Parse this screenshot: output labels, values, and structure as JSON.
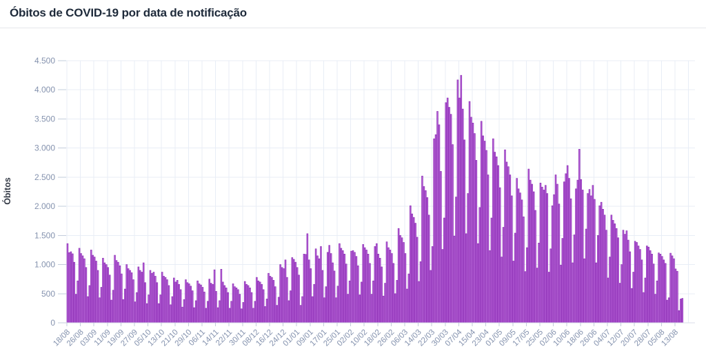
{
  "page": {
    "title": "Óbitos de COVID-19 por data de notificação"
  },
  "colors": {
    "title_text": "#1e2a3a",
    "axis_label_text": "#343a46",
    "tick_label_text": "#8492ae",
    "gridline": "#e8edf6",
    "axis_line": "#d8dee9",
    "tick_mark": "#c2ccdb",
    "bar_fill": "#b560d6",
    "bar_border": "#8a2cb3",
    "divider": "#e5e6ea",
    "background": "#ffffff"
  },
  "chart_data": {
    "type": "bar",
    "title": "Óbitos de COVID-19 por data de notificação",
    "xlabel": "",
    "ylabel": "Óbitos",
    "ylim": [
      0,
      4500
    ],
    "y_tick_step": 500,
    "y_ticks": [
      "0",
      "500",
      "1.000",
      "1.500",
      "2.000",
      "2.500",
      "3.000",
      "3.500",
      "4.000",
      "4.500"
    ],
    "grid": true,
    "legend_position": "none",
    "frequency": "daily",
    "start_date": "18/08/2020",
    "end_date": "17/08/2021",
    "x_tick_interval_days": 8,
    "x_tick_labels": [
      "18/08",
      "26/08",
      "03/09",
      "11/09",
      "19/09",
      "27/09",
      "05/10",
      "13/10",
      "21/10",
      "29/10",
      "06/11",
      "14/11",
      "22/11",
      "30/11",
      "08/12",
      "16/12",
      "24/12",
      "01/01",
      "09/01",
      "17/01",
      "25/01",
      "02/02",
      "10/02",
      "18/02",
      "26/02",
      "06/03",
      "14/03",
      "22/03",
      "30/03",
      "07/04",
      "15/04",
      "23/04",
      "01/05",
      "09/05",
      "17/05",
      "25/05",
      "02/06",
      "10/06",
      "18/06",
      "26/06",
      "04/07",
      "12/07",
      "20/07",
      "28/07",
      "05/08",
      "13/08"
    ],
    "values": [
      1360,
      1205,
      1220,
      1185,
      1040,
      490,
      720,
      1280,
      1190,
      1150,
      1100,
      950,
      450,
      640,
      1250,
      1160,
      1130,
      1060,
      900,
      430,
      610,
      1110,
      1030,
      1000,
      950,
      820,
      390,
      560,
      1160,
      1070,
      1040,
      980,
      840,
      400,
      580,
      1000,
      930,
      900,
      860,
      740,
      360,
      520,
      960,
      900,
      870,
      1030,
      690,
      330,
      480,
      900,
      850,
      870,
      800,
      690,
      330,
      480,
      870,
      800,
      780,
      740,
      640,
      310,
      450,
      770,
      700,
      730,
      660,
      570,
      270,
      400,
      740,
      690,
      670,
      630,
      550,
      260,
      380,
      720,
      670,
      650,
      610,
      530,
      250,
      370,
      750,
      680,
      660,
      910,
      540,
      260,
      380,
      920,
      700,
      640,
      600,
      520,
      250,
      370,
      670,
      620,
      600,
      570,
      490,
      240,
      350,
      710,
      660,
      640,
      600,
      520,
      250,
      370,
      780,
      720,
      700,
      660,
      570,
      280,
      410,
      850,
      800,
      780,
      730,
      620,
      300,
      440,
      1000,
      950,
      930,
      1080,
      780,
      380,
      550,
      1120,
      1090,
      1040,
      950,
      820,
      300,
      450,
      1180,
      1175,
      1530,
      1080,
      930,
      450,
      660,
      1270,
      1150,
      1100,
      1310,
      900,
      430,
      620,
      1210,
      1330,
      1190,
      1030,
      890,
      430,
      630,
      1360,
      1280,
      1240,
      1180,
      1010,
      490,
      720,
      1230,
      1240,
      1210,
      1140,
      980,
      480,
      700,
      1345,
      1290,
      1250,
      1180,
      1020,
      490,
      720,
      1310,
      1360,
      1180,
      1110,
      960,
      460,
      680,
      1390,
      1290,
      1250,
      1190,
      1020,
      500,
      730,
      1620,
      1500,
      1460,
      1380,
      1190,
      580,
      840,
      2010,
      1870,
      1810,
      1710,
      1470,
      710,
      1050,
      2520,
      2340,
      2270,
      2150,
      1850,
      900,
      1310,
      3160,
      3230,
      3630,
      3400,
      2600,
      1260,
      1800,
      3780,
      3860,
      3700,
      3580,
      3060,
      1490,
      2160,
      4170,
      3860,
      4249,
      3670,
      3140,
      1530,
      2220,
      3800,
      3530,
      3430,
      3250,
      2790,
      1360,
      1980,
      3460,
      3210,
      3120,
      2960,
      2540,
      1240,
      1800,
      3160,
      2930,
      2850,
      2700,
      2320,
      1130,
      1640,
      2970,
      2760,
      2680,
      2540,
      2180,
      1060,
      1540,
      2480,
      2300,
      2230,
      2110,
      1820,
      880,
      1290,
      2640,
      2450,
      2380,
      2250,
      1930,
      940,
      1370,
      2400,
      2330,
      2280,
      2360,
      2220,
      870,
      1270,
      2010,
      2200,
      2540,
      2380,
      2040,
      990,
      1450,
      2420,
      2560,
      2700,
      2480,
      2130,
      1030,
      1510,
      2300,
      2450,
      2980,
      2460,
      2280,
      1100,
      1610,
      2220,
      2290,
      2180,
      2360,
      2120,
      1030,
      1500,
      2010,
      2070,
      1950,
      1850,
      1590,
      770,
      1130,
      1850,
      1760,
      1700,
      1620,
      1460,
      680,
      1000,
      1590,
      1520,
      1580,
      1420,
      1220,
      590,
      870,
      1400,
      1380,
      1320,
      1260,
      1080,
      520,
      770,
      1320,
      1300,
      1240,
      1180,
      1010,
      490,
      720,
      1200,
      1180,
      1140,
      1080,
      1020,
      390,
      430,
      1195,
      1150,
      1100,
      925,
      885,
      210,
      409,
      420
    ]
  }
}
